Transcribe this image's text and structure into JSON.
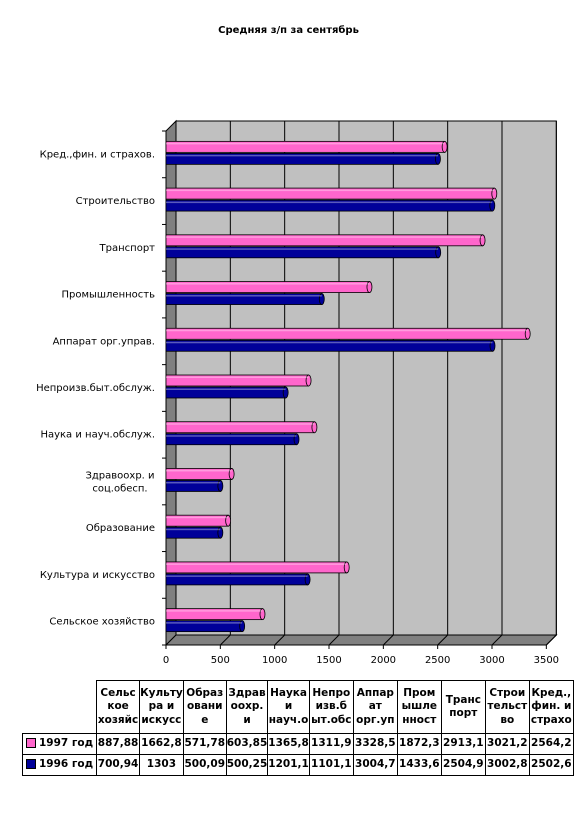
{
  "title": "Средняя з/п за сентябрь",
  "colors": {
    "series_1997": "#ff66cc",
    "series_1996": "#000099",
    "plot_bg": "#c0c0c0",
    "wall_side": "#808080"
  },
  "chart_data": {
    "type": "bar",
    "orientation": "horizontal",
    "title": "Средняя з/п за сентябрь",
    "categories": [
      "Кред.,фин. и страхов.",
      "Строительство",
      "Транспорт",
      "Промышленность",
      "Аппарат орг.управ.",
      "Непроизв.быт.обслуж.",
      "Наука и науч.обслуж.",
      "Здравоохр. и соц.обесп.",
      "Образование",
      "Культура и искусство",
      "Сельское хозяйство"
    ],
    "series": [
      {
        "name": "1997 год",
        "values": [
          2564.2,
          3021.2,
          2913.1,
          1872.3,
          3328.5,
          1311.9,
          1365.8,
          603.85,
          571.78,
          1662.8,
          887.88
        ]
      },
      {
        "name": "1996 год",
        "values": [
          2502.6,
          3002.8,
          2504.9,
          1433.6,
          3004.7,
          1101.1,
          1201.1,
          500.25,
          500.09,
          1303,
          700.94
        ]
      }
    ],
    "xlim": [
      0,
      3500
    ],
    "x_ticks": [
      "0",
      "500",
      "1000",
      "1500",
      "2000",
      "2500",
      "3000",
      "3500"
    ],
    "grid": true
  },
  "table": {
    "headers": [
      "Сельс кое хозяйс",
      "Культу ра и искусс",
      "Образ овани е",
      "Здрав оохр. и",
      "Наука и науч.о",
      "Непро изв.б ыт.обс",
      "Аппар ат орг.уп",
      "Пром ышле нност",
      "Транс порт",
      "Строи тельст во",
      "Кред., фин. и страхо"
    ],
    "rows": [
      {
        "label": "1997 год",
        "values": [
          "887,88",
          "1662,8",
          "571,78",
          "603,85",
          "1365,8",
          "1311,9",
          "3328,5",
          "1872,3",
          "2913,1",
          "3021,2",
          "2564,2"
        ]
      },
      {
        "label": "1996 год",
        "values": [
          "700,94",
          "1303",
          "500,09",
          "500,25",
          "1201,1",
          "1101,1",
          "3004,7",
          "1433,6",
          "2504,9",
          "3002,8",
          "2502,6"
        ]
      }
    ]
  }
}
